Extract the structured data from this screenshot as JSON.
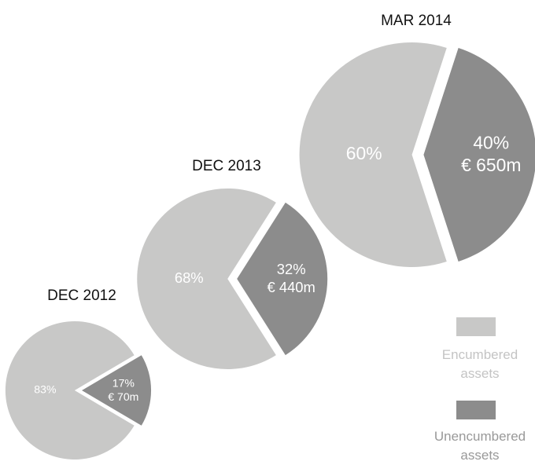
{
  "chart_data": [
    {
      "type": "pie",
      "title": "DEC 2012",
      "values": [
        83,
        17
      ],
      "value_labels": [
        "83%",
        "17%"
      ],
      "annotation": "€ 70m"
    },
    {
      "type": "pie",
      "title": "DEC 2013",
      "values": [
        68,
        32
      ],
      "value_labels": [
        "68%",
        "32%"
      ],
      "annotation": "€ 440m"
    },
    {
      "type": "pie",
      "title": "MAR 2014",
      "values": [
        60,
        40
      ],
      "value_labels": [
        "60%",
        "40%"
      ],
      "annotation": "€ 650m"
    }
  ],
  "legend": {
    "labels": [
      "Encumbered assets",
      "Unencumbered assets"
    ],
    "colors": [
      "#c8c8c7",
      "#8c8c8c"
    ]
  }
}
